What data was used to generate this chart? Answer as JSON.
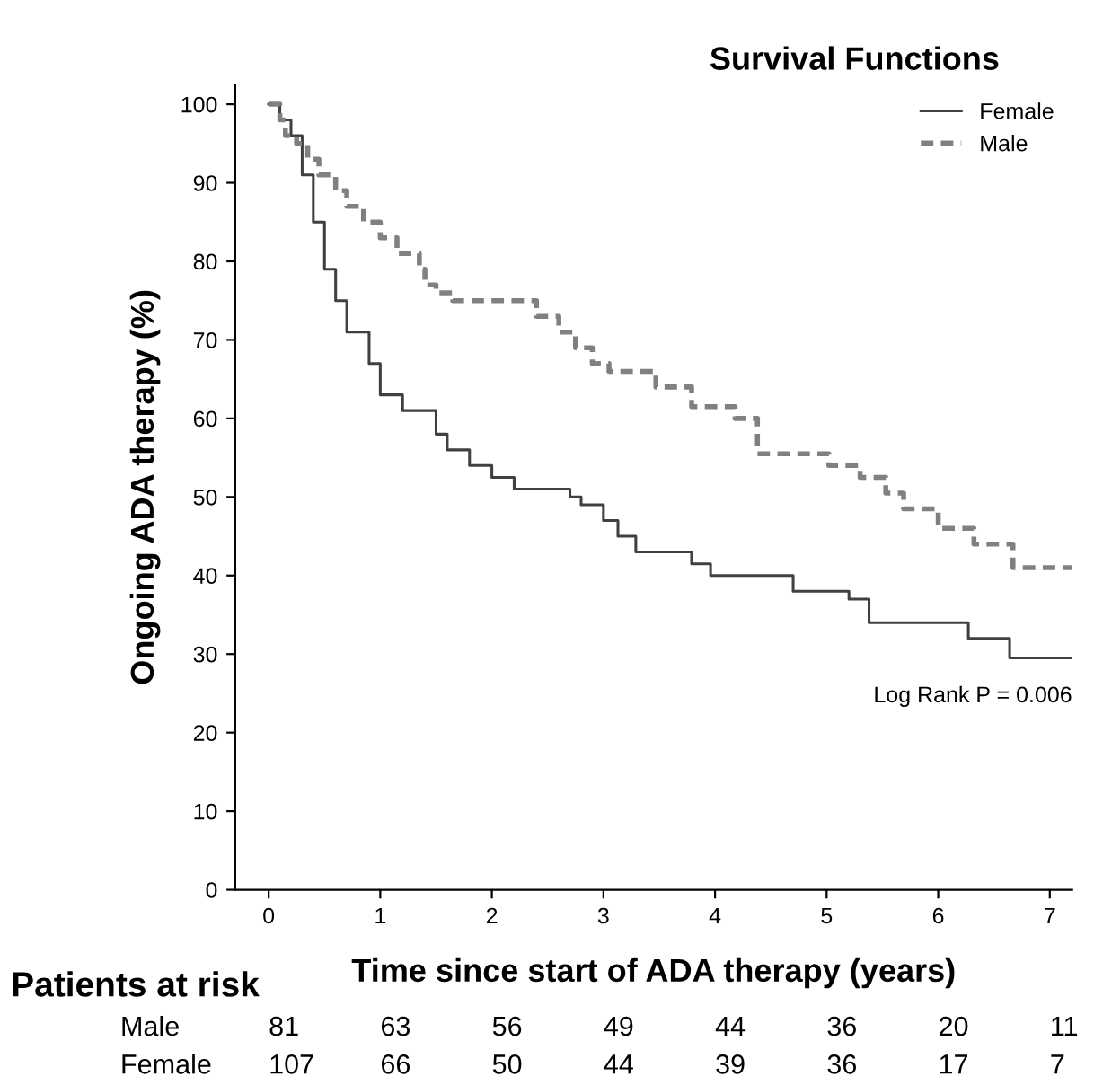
{
  "chart_data": {
    "type": "step",
    "title": "Survival Functions",
    "xlabel": "Time since start of ADA therapy (years)",
    "ylabel": "Ongoing ADA therapy (%)",
    "series": [
      {
        "name": "Female",
        "color": "#404040",
        "line_style": "solid",
        "x": [
          0,
          0.1,
          0.2,
          0.3,
          0.4,
          0.5,
          0.6,
          0.7,
          0.9,
          1.0,
          1.2,
          1.5,
          1.6,
          1.8,
          2.0,
          2.2,
          2.7,
          2.8,
          3.0,
          3.13,
          3.29,
          3.79,
          3.96,
          4.7,
          5.2,
          5.38,
          6.27,
          6.64,
          7.2
        ],
        "values": [
          100,
          98,
          96,
          91,
          85,
          79,
          75,
          71,
          67,
          63,
          61,
          58,
          56,
          54,
          52.5,
          51,
          50,
          49,
          47,
          45,
          43,
          41.5,
          40,
          38,
          37,
          34,
          32,
          29.5,
          29.5
        ]
      },
      {
        "name": "Male",
        "color": "#808080",
        "line_style": "dashed",
        "x": [
          0,
          0.1,
          0.15,
          0.25,
          0.35,
          0.45,
          0.6,
          0.7,
          0.85,
          1.0,
          1.15,
          1.35,
          1.4,
          1.5,
          1.65,
          2.4,
          2.6,
          2.75,
          2.9,
          3.05,
          3.47,
          3.79,
          4.18,
          4.38,
          5.02,
          5.3,
          5.53,
          5.69,
          6.0,
          6.32,
          6.67,
          7.2
        ],
        "values": [
          100,
          98,
          96,
          95,
          93,
          91,
          89,
          87,
          85,
          83,
          81,
          79,
          77,
          76,
          75,
          73,
          71,
          69,
          67,
          66,
          64,
          61.5,
          60,
          55.5,
          54,
          52.5,
          50.5,
          48.5,
          46,
          44,
          41,
          41
        ]
      }
    ],
    "xlim": [
      -0.3,
      7.2
    ],
    "xticks": [
      0,
      1,
      2,
      3,
      4,
      5,
      6,
      7
    ],
    "ylim": [
      0,
      102.5
    ],
    "yticks": [
      0,
      10,
      20,
      30,
      40,
      50,
      60,
      70,
      80,
      90,
      100
    ],
    "grid": false,
    "legend": "top right",
    "annotations": [
      "Log Rank P = 0.006",
      "Patients at risk",
      "Male",
      "81",
      "63",
      "56",
      "49",
      "44",
      "36",
      "20",
      "11",
      "Female",
      "107",
      "66",
      "50",
      "44",
      "39",
      "36",
      "17",
      "7"
    ]
  }
}
